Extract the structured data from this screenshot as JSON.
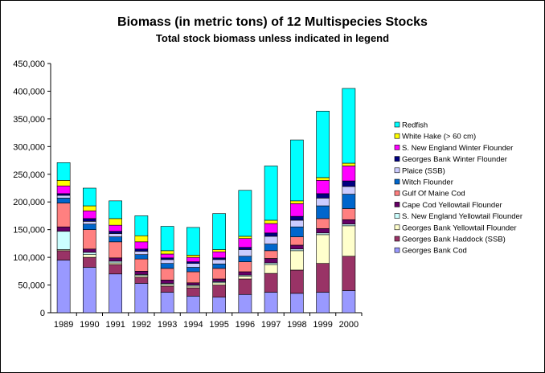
{
  "chart_data": {
    "type": "bar",
    "stacked": true,
    "title": "Biomass (in metric tons) of 12 Multispecies Stocks",
    "subtitle": "Total stock biomass unless indicated in legend",
    "xlabel": "",
    "ylabel": "",
    "ylim": [
      0,
      450000
    ],
    "yticks": [
      "0",
      "50,000",
      "100,000",
      "150,000",
      "200,000",
      "250,000",
      "300,000",
      "350,000",
      "400,000",
      "450,000"
    ],
    "grid": false,
    "legend_position": "right",
    "categories": [
      "1989",
      "1990",
      "1991",
      "1992",
      "1993",
      "1994",
      "1995",
      "1996",
      "1997",
      "1998",
      "1999",
      "2000"
    ],
    "series": [
      {
        "name": "Georges Bank Cod",
        "color": "#9999ff",
        "values": [
          95000,
          82000,
          70000,
          53000,
          37000,
          30000,
          28000,
          33000,
          37000,
          35000,
          37000,
          40000
        ]
      },
      {
        "name": "Georges Bank Haddock (SSB)",
        "color": "#993366",
        "values": [
          17000,
          18000,
          17000,
          11000,
          11000,
          15000,
          22000,
          28000,
          34000,
          42000,
          52000,
          62000
        ]
      },
      {
        "name": "Georges Bank Yellowtail Flounder",
        "color": "#ffffcc",
        "values": [
          2000,
          5000,
          3000,
          3000,
          3000,
          3000,
          4000,
          5000,
          16000,
          35000,
          52000,
          55000
        ]
      },
      {
        "name": "S. New England Yellowtail Flounder",
        "color": "#ccffff",
        "values": [
          33000,
          4000,
          3000,
          2000,
          2000,
          2000,
          2000,
          2000,
          3000,
          3000,
          3000,
          3000
        ]
      },
      {
        "name": "Cape Cod Yellowtail Flounder",
        "color": "#660066",
        "values": [
          8000,
          6000,
          6000,
          6000,
          6000,
          4000,
          5000,
          6000,
          8000,
          7000,
          8000,
          8000
        ]
      },
      {
        "name": "Gulf Of Maine Cod",
        "color": "#ff8080",
        "values": [
          43000,
          35000,
          29000,
          22000,
          21000,
          20000,
          19000,
          18000,
          14000,
          15000,
          18000,
          20000
        ]
      },
      {
        "name": "Witch Flounder",
        "color": "#0066cc",
        "values": [
          9000,
          10000,
          9000,
          8000,
          9000,
          8000,
          8000,
          10000,
          12000,
          18000,
          23000,
          26000
        ]
      },
      {
        "name": "Plaice (SSB)",
        "color": "#ccccff",
        "values": [
          5000,
          5000,
          6000,
          6000,
          7000,
          7000,
          8000,
          12000,
          14000,
          12000,
          14000,
          14000
        ]
      },
      {
        "name": "Georges Bank Winter Flounder",
        "color": "#000080",
        "values": [
          3000,
          5000,
          4000,
          4000,
          3000,
          3000,
          3000,
          4000,
          6000,
          7000,
          8000,
          10000
        ]
      },
      {
        "name": "S. New England Winter Flounder",
        "color": "#ff00ff",
        "values": [
          14000,
          14000,
          11000,
          13000,
          7000,
          8000,
          11000,
          16000,
          17000,
          23000,
          24000,
          27000
        ]
      },
      {
        "name": "White Hake (> 60 cm)",
        "color": "#ffff00",
        "values": [
          10000,
          9000,
          12000,
          11000,
          6000,
          4000,
          4000,
          4000,
          6000,
          5000,
          5000,
          5000
        ]
      },
      {
        "name": "Redfish",
        "color": "#00ffff",
        "values": [
          32000,
          32000,
          32000,
          36000,
          44000,
          50000,
          65000,
          83000,
          98000,
          110000,
          120000,
          135000
        ]
      }
    ]
  }
}
